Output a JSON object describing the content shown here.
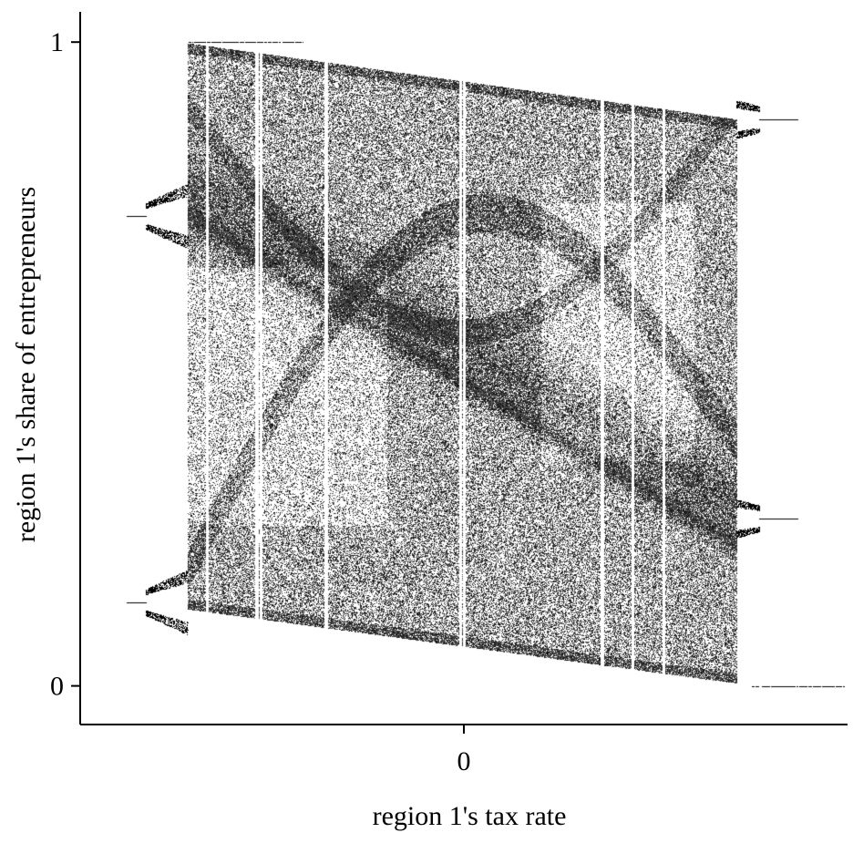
{
  "chart_data": {
    "type": "scatter",
    "title": "",
    "xlabel": "region 1's tax rate",
    "ylabel": "region 1's share of entrepreneurs",
    "xlim": [
      -1,
      1
    ],
    "ylim": [
      -0.06,
      1.03
    ],
    "x_ticks": [
      {
        "value": 0,
        "label": "0"
      }
    ],
    "y_ticks": [
      {
        "value": 0,
        "label": "0"
      },
      {
        "value": 1,
        "label": "1"
      }
    ],
    "grid": false,
    "legend": "none",
    "point_color": "#000000",
    "outer_tails": [
      {
        "x": [
          -0.72,
          -0.42
        ],
        "y": [
          1.0,
          1.0
        ]
      },
      {
        "x": [
          0.75,
          0.99
        ],
        "y": [
          0.0,
          0.0
        ]
      }
    ],
    "left_attractor": {
      "x_start": -0.88,
      "x_end": -0.72,
      "bifurcation_x": -0.83,
      "periodic_y": [
        0.73,
        0.13
      ],
      "fork_spread": 0.05
    },
    "chaotic_band": {
      "x_range": [
        -0.72,
        0.71
      ],
      "top_edge": [
        {
          "x": -0.72,
          "y": 0.998
        },
        {
          "x": 0.71,
          "y": 0.88
        }
      ],
      "bottom_edge": [
        {
          "x": -0.72,
          "y": 0.12
        },
        {
          "x": 0.71,
          "y": 0.005
        }
      ],
      "main_diagonal_bands": [
        {
          "from": {
            "x": -0.72,
            "y": 0.77
          },
          "to": {
            "x": 0.71,
            "y": 0.28
          },
          "width": 0.2
        },
        {
          "from": {
            "x": -0.72,
            "y": 0.73
          },
          "to": {
            "x": 0.71,
            "y": 0.22
          },
          "width": 0.05
        }
      ],
      "light_regions": [
        {
          "x_range": [
            -0.72,
            -0.2
          ],
          "y_range": [
            0.25,
            0.65
          ]
        },
        {
          "x_range": [
            0.2,
            0.6
          ],
          "y_range": [
            0.35,
            0.75
          ]
        }
      ],
      "periodic_windows_x": [
        -0.67,
        -0.54,
        -0.53,
        -0.36,
        -0.01,
        0.0,
        0.36,
        0.44,
        0.52
      ]
    },
    "right_attractor": {
      "x_start": 0.71,
      "x_end": 0.87,
      "bifurcation_x": 0.77,
      "periodic_y": [
        0.88,
        0.26
      ],
      "fork_spread": 0.03
    }
  }
}
